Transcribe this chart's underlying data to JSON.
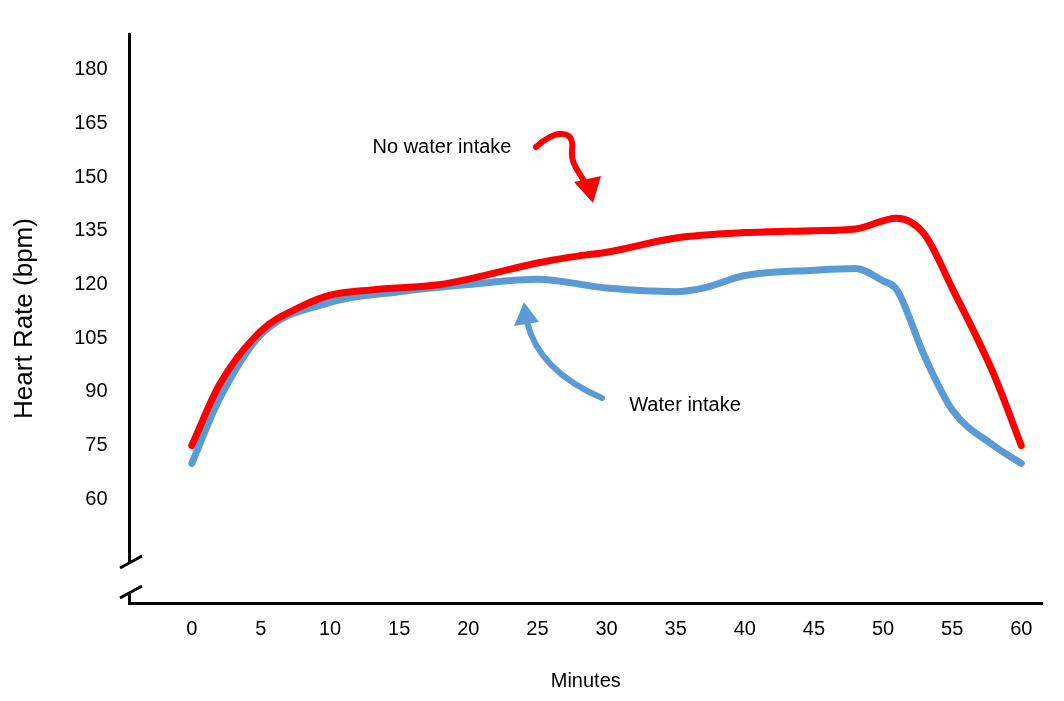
{
  "chart_data": {
    "type": "line",
    "xlabel": "Minutes",
    "ylabel": "Heart Rate (bpm)",
    "xlim": [
      -4.5,
      61.5
    ],
    "xticks": [
      0,
      5,
      10,
      15,
      20,
      25,
      30,
      35,
      40,
      45,
      50,
      55,
      60
    ],
    "ylim": [
      31,
      190
    ],
    "yticks": [
      60,
      75,
      90,
      105,
      120,
      135,
      150,
      165,
      180
    ],
    "grid": false,
    "legend": false,
    "marker": "none",
    "line_style": "solid",
    "series": [
      {
        "color": "#ff0000",
        "x": [
          0,
          2,
          5,
          8,
          10,
          13,
          18,
          20,
          25,
          28,
          30,
          35,
          40,
          45,
          48,
          51,
          53,
          55,
          58,
          60
        ],
        "values": [
          75,
          92,
          107,
          114,
          117,
          118.5,
          120,
          121.5,
          126,
          128,
          129,
          133,
          134.5,
          135,
          135.5,
          138.5,
          134,
          119,
          95,
          75
        ]
      },
      {
        "color": "#5b9bd5",
        "x": [
          0,
          2,
          5,
          10,
          15,
          20,
          25,
          30,
          35,
          37,
          40,
          45,
          48,
          50,
          51,
          53,
          55,
          58,
          60
        ],
        "values": [
          70,
          88,
          106,
          115,
          118,
          120,
          121.5,
          119,
          118,
          119,
          122.5,
          124,
          124.5,
          121,
          118.5,
          100,
          85,
          75,
          70
        ]
      }
    ],
    "annotations": [
      "No water intake",
      "Water intake"
    ]
  }
}
